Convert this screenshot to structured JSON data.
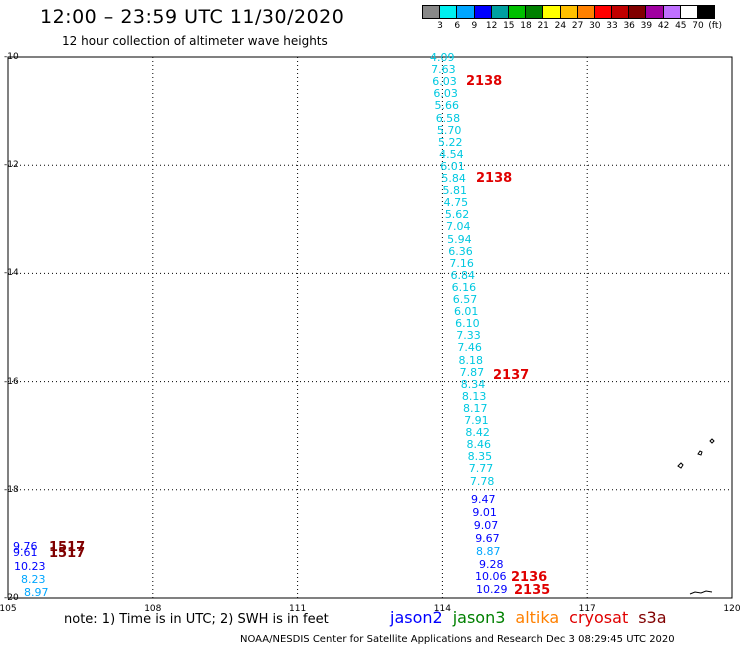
{
  "header": {
    "title": "12:00 – 23:59 UTC 11/30/2020",
    "subtitle": "12 hour collection of altimeter wave heights"
  },
  "colorbar": {
    "colors": [
      "#888888",
      "#00f0f0",
      "#00a6ff",
      "#0000ff",
      "#00a0a0",
      "#00c000",
      "#008000",
      "#ffff00",
      "#ffc000",
      "#ff8000",
      "#ff0000",
      "#c00000",
      "#800000",
      "#a000a0",
      "#c070ff",
      "#ffffff",
      "#000000"
    ],
    "labels": [
      "3",
      "6",
      "9",
      "12",
      "15",
      "18",
      "21",
      "24",
      "27",
      "30",
      "33",
      "36",
      "39",
      "42",
      "45",
      "70",
      "(ft)"
    ]
  },
  "axes": {
    "lat_labels": [
      "-10",
      "-12",
      "-14",
      "-16",
      "-18",
      "-20"
    ],
    "lon_labels": [
      "105",
      "108",
      "111",
      "114",
      "117",
      "120"
    ]
  },
  "observations": {
    "cyan_track": [
      "4.09",
      "7.63",
      "6.03",
      "6.03",
      "5.66",
      "6.58",
      "5.70",
      "5.22",
      "4.54",
      "6.01",
      "5.84",
      "5.81",
      "4.75",
      "5.62",
      "7.04",
      "5.94",
      "6.36",
      "7.16",
      "6.84",
      "6.16",
      "6.57",
      "6.01",
      "6.10",
      "7.33",
      "7.46",
      "8.18",
      "7.87",
      "8.34",
      "8.13",
      "8.17",
      "7.91",
      "8.42",
      "8.46",
      "8.35",
      "7.77",
      "7.78"
    ],
    "blue_track": [
      "9.47",
      "9.01",
      "9.07",
      "9.67"
    ],
    "lower_track": [
      {
        "v": "8.87",
        "c": "#00a6ff"
      },
      {
        "v": "9.28",
        "c": "#0000ff"
      },
      {
        "v": "10.06",
        "c": "#0000ff"
      },
      {
        "v": "10.29",
        "c": "#0000ff"
      }
    ],
    "west_cluster": [
      {
        "v": "9.76",
        "c": "#0000ff"
      },
      {
        "v": "9.61",
        "c": "#0000ff"
      },
      {
        "v": "10.23",
        "c": "#0000ff"
      },
      {
        "v": "8.23",
        "c": "#00a6ff"
      },
      {
        "v": "8.97",
        "c": "#00a6ff"
      }
    ]
  },
  "pass_labels": [
    {
      "text": "2138",
      "c": "#e00000"
    },
    {
      "text": "2138",
      "c": "#e00000"
    },
    {
      "text": "2137",
      "c": "#e00000"
    },
    {
      "text": "2136",
      "c": "#e00000"
    },
    {
      "text": "2135",
      "c": "#e00000"
    },
    {
      "text": "1517",
      "c": "#800000"
    },
    {
      "text": "1517",
      "c": "#800000"
    }
  ],
  "footer": {
    "note": "note:  1) Time is in UTC;  2) SWH is in feet",
    "legend": [
      {
        "name": "jason2",
        "color": "#0000ff"
      },
      {
        "name": "jason3",
        "color": "#008000"
      },
      {
        "name": "altika",
        "color": "#ff8000"
      },
      {
        "name": "cryosat",
        "color": "#e00000"
      },
      {
        "name": "s3a",
        "color": "#800000"
      }
    ],
    "credit": "NOAA/NESDIS Center for Satellite Applications and Research    Dec  3 08:29:45 UTC 2020"
  }
}
